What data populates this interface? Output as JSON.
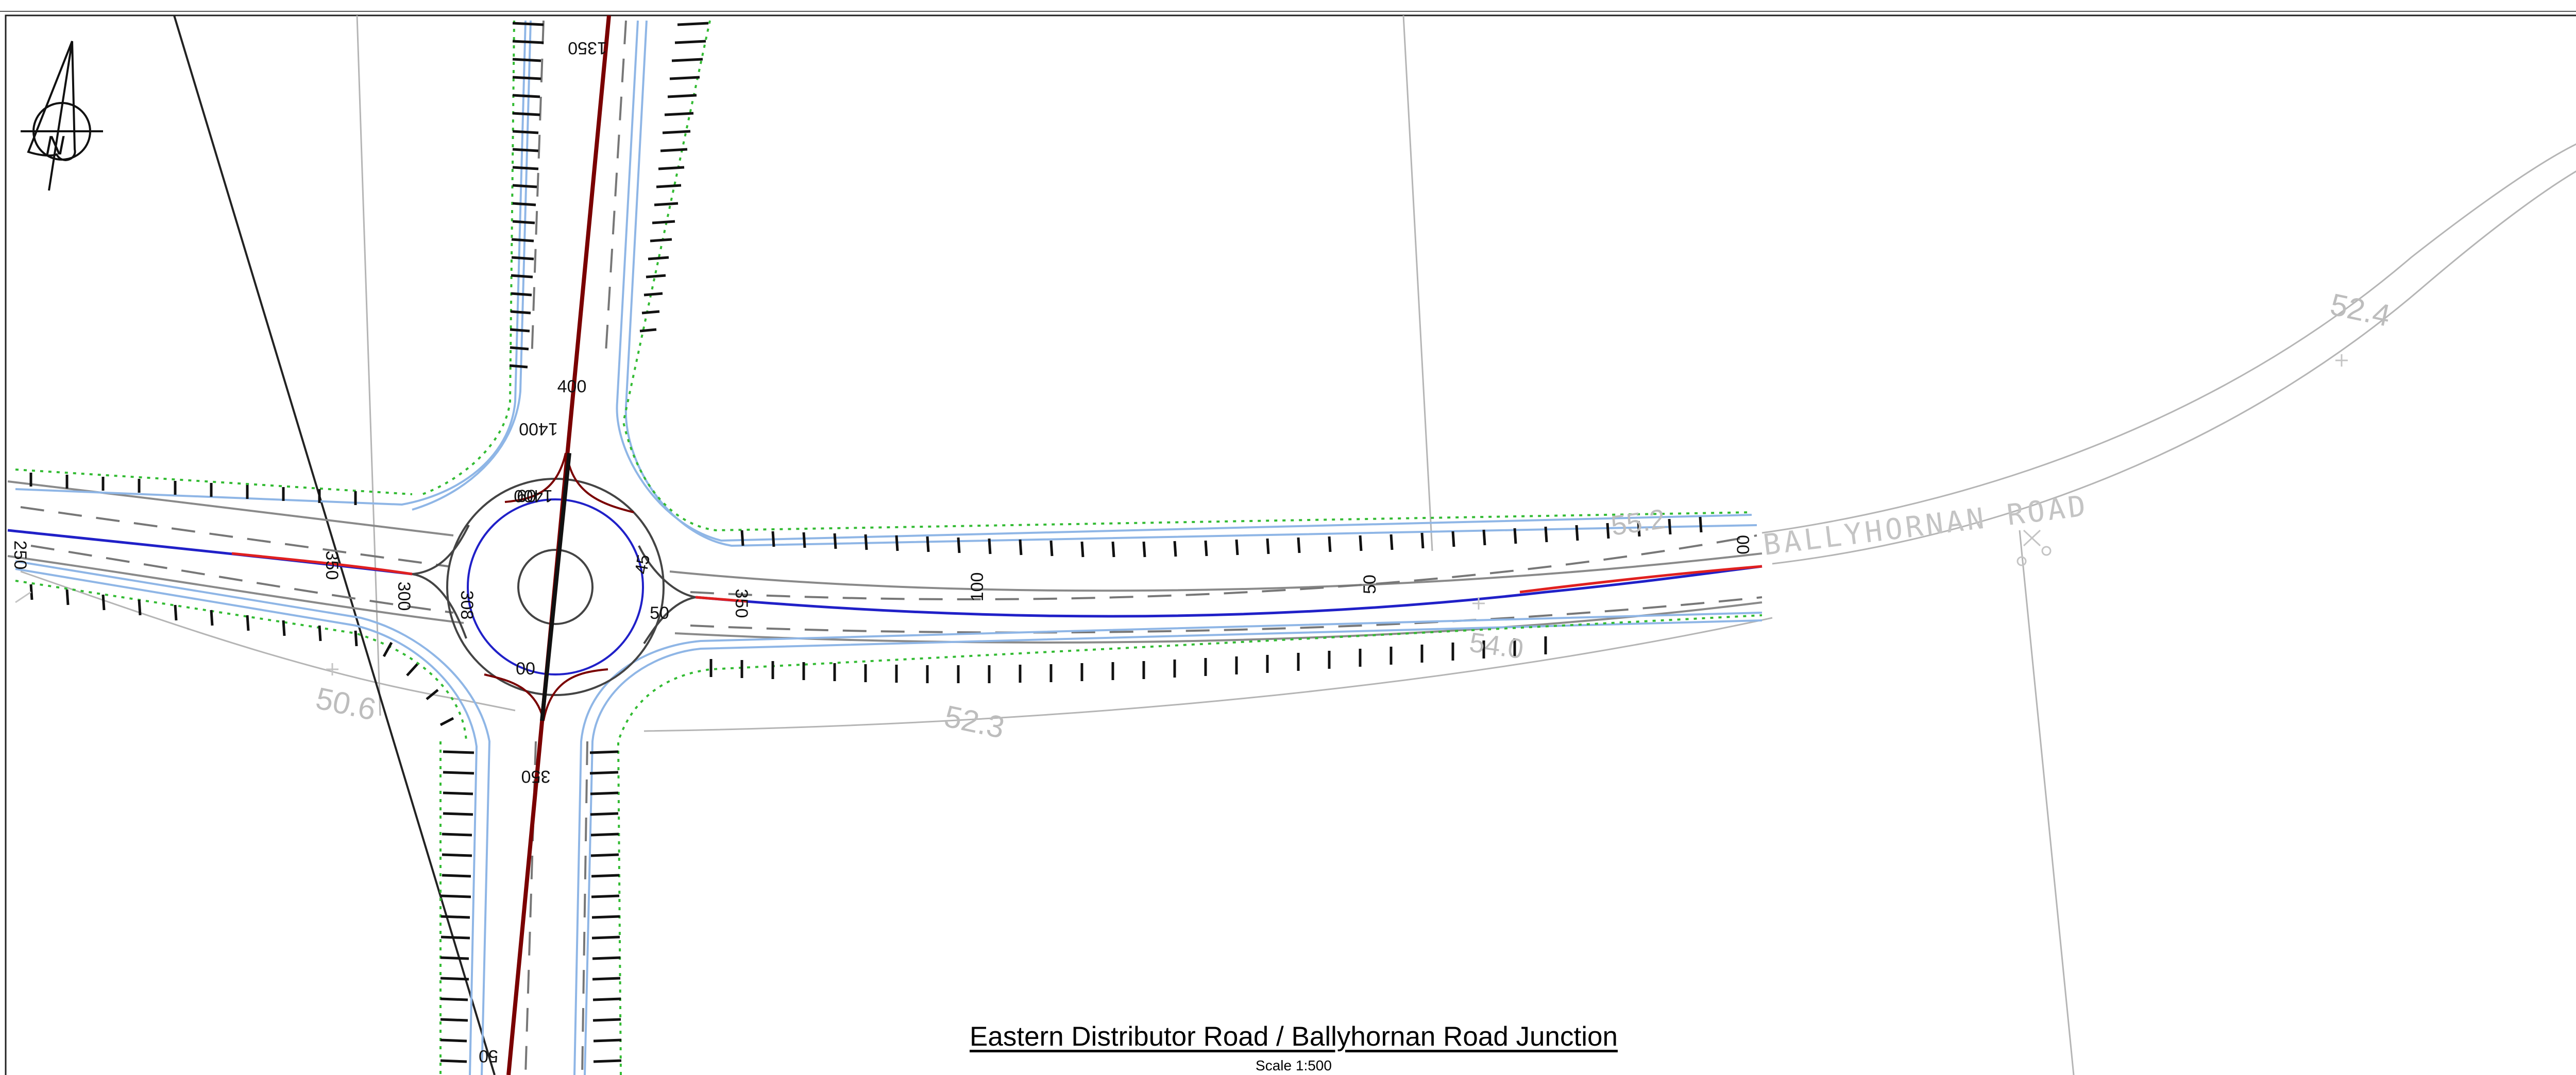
{
  "drawing": {
    "title": "Eastern Distributor Road / Ballyhornan Road Junction",
    "scale": "Scale 1:500",
    "north_label": "N",
    "road_name": "BALLYHORNAN ROAD",
    "colors": {
      "centerline_main": "#7a0000",
      "centerline_minor_red": "#e02020",
      "centerline_minor_blue": "#2020c8",
      "kerb": "#8fb6e6",
      "edge": "#8a8a8a",
      "verge_green": "#33bb33",
      "ground": "#bdbdbd"
    },
    "chainages": {
      "main_top": "1350",
      "main_mid": "1400",
      "main_bottom": "1400",
      "island_top": "60",
      "island_n": "400",
      "main_south": "350",
      "main_south_end": "50",
      "island_south": "00",
      "island_w": "308",
      "island_e": "45",
      "minor_w_1": "350",
      "minor_w_2": "300",
      "minor_w_end": "250",
      "minor_e_1": "350",
      "minor_e_2": "50",
      "minor_e_3": "100",
      "minor_e_4": "50",
      "minor_e_end": "00"
    },
    "spot_levels": {
      "ne": "52.4",
      "sw": "50.6",
      "s": "52.3",
      "se": "54.0",
      "e": "55.2"
    }
  }
}
